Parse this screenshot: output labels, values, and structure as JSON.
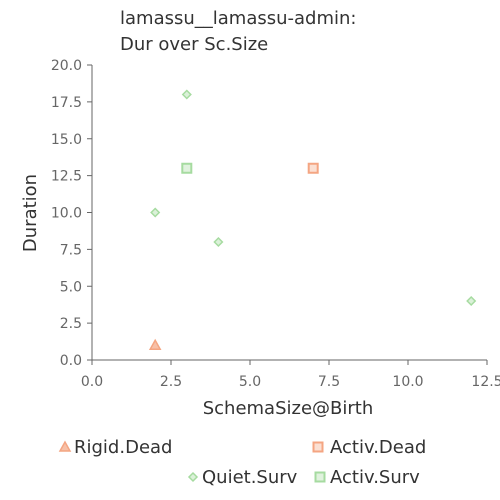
{
  "chart_data": {
    "type": "scatter",
    "title_lines": [
      "lamassu__lamassu-admin:",
      "Dur over Sc.Size"
    ],
    "xlabel": "SchemaSize@Birth",
    "ylabel": "Duration",
    "xlim": [
      0,
      12.5
    ],
    "ylim": [
      0,
      20
    ],
    "x_ticks": [
      {
        "value": 0,
        "label": "0.0"
      },
      {
        "value": 2.5,
        "label": "2.5"
      },
      {
        "value": 5,
        "label": "5.0"
      },
      {
        "value": 7.5,
        "label": "7.5"
      },
      {
        "value": 10,
        "label": "10.0"
      },
      {
        "value": 12.5,
        "label": "12.5"
      }
    ],
    "y_ticks": [
      {
        "value": 0,
        "label": "0.0"
      },
      {
        "value": 2.5,
        "label": "2.5"
      },
      {
        "value": 5,
        "label": "5.0"
      },
      {
        "value": 7.5,
        "label": "7.5"
      },
      {
        "value": 10,
        "label": "10.0"
      },
      {
        "value": 12.5,
        "label": "12.5"
      },
      {
        "value": 15,
        "label": "15.0"
      },
      {
        "value": 17.5,
        "label": "17.5"
      },
      {
        "value": 20,
        "label": "20.0"
      }
    ],
    "grid": "vertical-at-zero-only",
    "legend_position": "bottom",
    "series": [
      {
        "name": "Rigid.Dead",
        "marker": "triangle",
        "color": "#f4a582",
        "points": [
          {
            "x": 2,
            "y": 1
          }
        ]
      },
      {
        "name": "Activ.Dead",
        "marker": "square",
        "color": "#f4a582",
        "points": [
          {
            "x": 7,
            "y": 13
          }
        ]
      },
      {
        "name": "Quiet.Surv",
        "marker": "diamond",
        "color": "#a6dba0",
        "points": [
          {
            "x": 3,
            "y": 18
          },
          {
            "x": 2,
            "y": 10
          },
          {
            "x": 4,
            "y": 8
          },
          {
            "x": 12,
            "y": 4
          }
        ]
      },
      {
        "name": "Activ.Surv",
        "marker": "square",
        "color": "#a6dba0",
        "points": [
          {
            "x": 3,
            "y": 13
          }
        ]
      }
    ]
  }
}
